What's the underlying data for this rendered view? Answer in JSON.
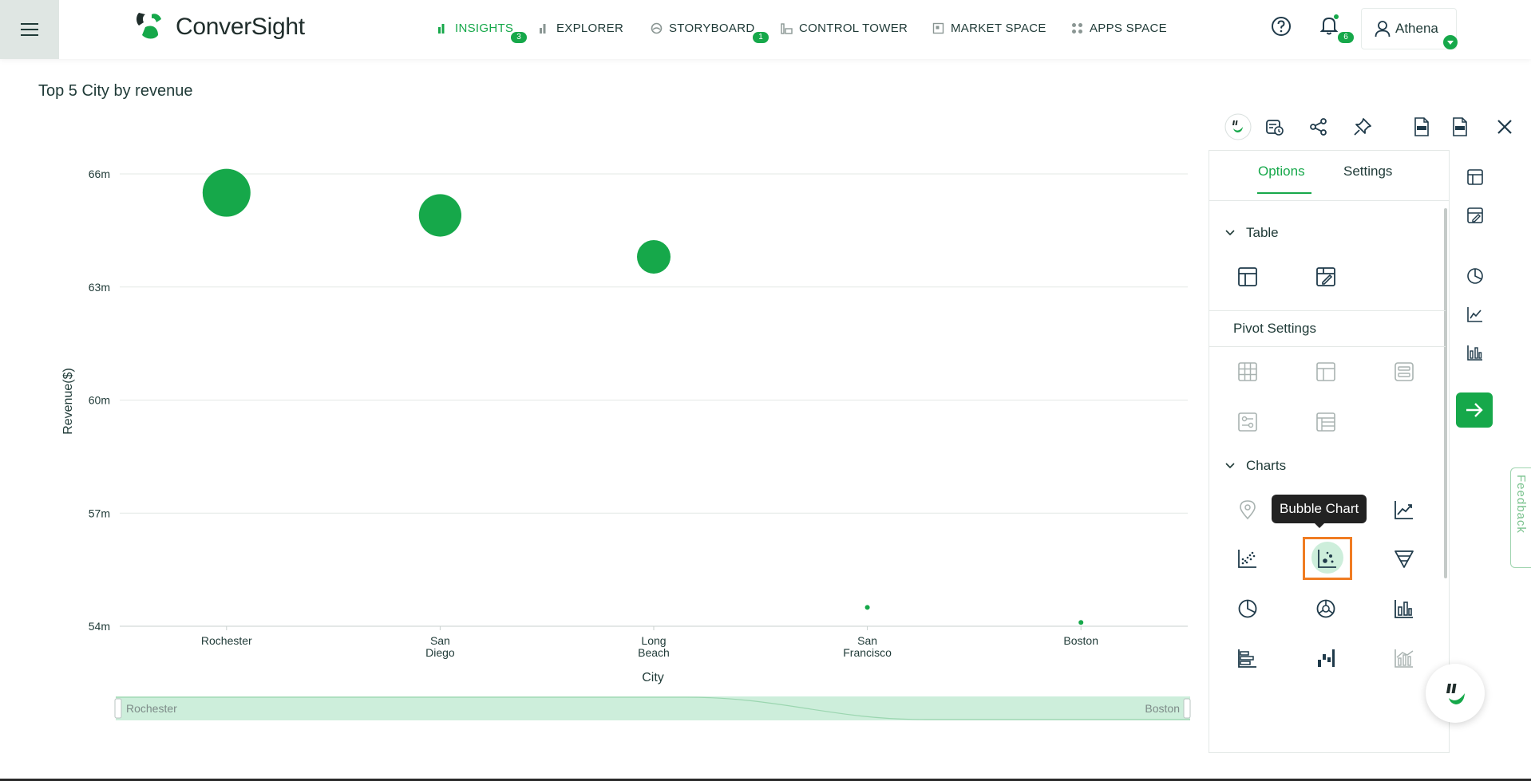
{
  "header": {
    "brand": "ConverSight",
    "nav": [
      {
        "label": "INSIGHTS",
        "badge": "3",
        "active": true,
        "icon": "bar-chart-icon"
      },
      {
        "label": "EXPLORER",
        "icon": "explorer-bar-icon"
      },
      {
        "label": "STORYBOARD",
        "badge": "1",
        "icon": "storyboard-icon"
      },
      {
        "label": "CONTROL TOWER",
        "icon": "control-tower-icon"
      },
      {
        "label": "MARKET SPACE",
        "icon": "market-space-icon"
      },
      {
        "label": "APPS SPACE",
        "icon": "apps-grid-icon"
      }
    ],
    "notifications_count": "6",
    "user_name": "Athena"
  },
  "insight_title": "Top 5 City by revenue",
  "chart_data": {
    "type": "scatter",
    "variant": "bubble",
    "categories": [
      "Rochester",
      "San Diego",
      "Long Beach",
      "San Francisco",
      "Boston"
    ],
    "category_lines": [
      [
        "Rochester"
      ],
      [
        "San",
        "Diego"
      ],
      [
        "Long",
        "Beach"
      ],
      [
        "San",
        "Francisco"
      ],
      [
        "Boston"
      ]
    ],
    "values": [
      65.5,
      64.9,
      63.8,
      54.5,
      54.1
    ],
    "bubble_size": [
      65.5,
      64.9,
      63.8,
      54.5,
      54.1
    ],
    "y_ticks": [
      "54m",
      "57m",
      "60m",
      "63m",
      "66m"
    ],
    "y_tick_values": [
      54,
      57,
      60,
      63,
      66
    ],
    "ylim": [
      54,
      66
    ],
    "xlabel": "City",
    "ylabel": "Revenue($)",
    "grid": true,
    "color": "#16a84a",
    "zoom_range_labels": [
      "Rochester",
      "Boston"
    ]
  },
  "toolbar": {
    "icons": [
      "assistant-logo-icon",
      "schedule-icon",
      "share-icon",
      "pin-icon",
      "pdf-icon",
      "xlsx-icon",
      "close-icon"
    ]
  },
  "panel": {
    "tabs": [
      "Options",
      "Settings"
    ],
    "active_tab": "Options",
    "table_section": "Table",
    "pivot_section": "Pivot Settings",
    "charts_section": "Charts",
    "tooltip": "Bubble Chart",
    "selected_chart": "Bubble Chart"
  },
  "feedback_label": "Feedback",
  "colors": {
    "accent": "#16a84a",
    "text": "#1f3a37",
    "selected_border": "#f07c22"
  }
}
